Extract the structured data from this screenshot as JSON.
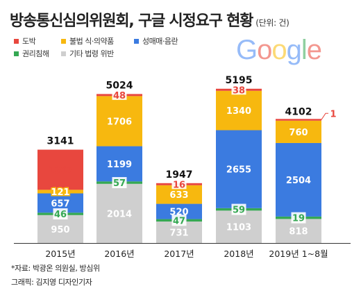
{
  "title": "방송통신심의위원회, 구글 시정요구 현황",
  "unit": "(단위: 건)",
  "logo_text": "Google",
  "logo_colors": [
    "#4285F4",
    "#EA4335",
    "#FBBC05",
    "#4285F4",
    "#34A853",
    "#EA4335"
  ],
  "source": "*자료: 박광온 의원실, 방심위",
  "credit": "그래픽: 김지영 디자인기자",
  "chart_data": {
    "type": "bar",
    "stacked": true,
    "categories": [
      "2015년",
      "2016년",
      "2017년",
      "2018년",
      "2019년 1~8월"
    ],
    "totals": [
      "3141",
      "5024",
      "1947",
      "5195",
      "4102"
    ],
    "ylim": [
      0,
      5200
    ],
    "legend_position": "top-left",
    "series": [
      {
        "name": "기타 법령 위반",
        "color": "#cfcfcf",
        "label_color": "#ffffff",
        "values": [
          950,
          2014,
          731,
          1103,
          818
        ]
      },
      {
        "name": "권리침해",
        "color": "#35a853",
        "label_color": "#35a853",
        "values": [
          46,
          57,
          47,
          59,
          19
        ]
      },
      {
        "name": "성매매·음란",
        "color": "#3b7be0",
        "label_color": "#ffffff",
        "values": [
          657,
          1199,
          520,
          2655,
          2504
        ]
      },
      {
        "name": "불법 식·의약품",
        "color": "#f7b80f",
        "label_color": "#ffffff",
        "values": [
          121,
          1706,
          633,
          1340,
          760
        ]
      },
      {
        "name": "도박",
        "color": "#e8473e",
        "label_color": "#e8473e",
        "values": [
          1367,
          48,
          16,
          38,
          1
        ]
      }
    ]
  }
}
